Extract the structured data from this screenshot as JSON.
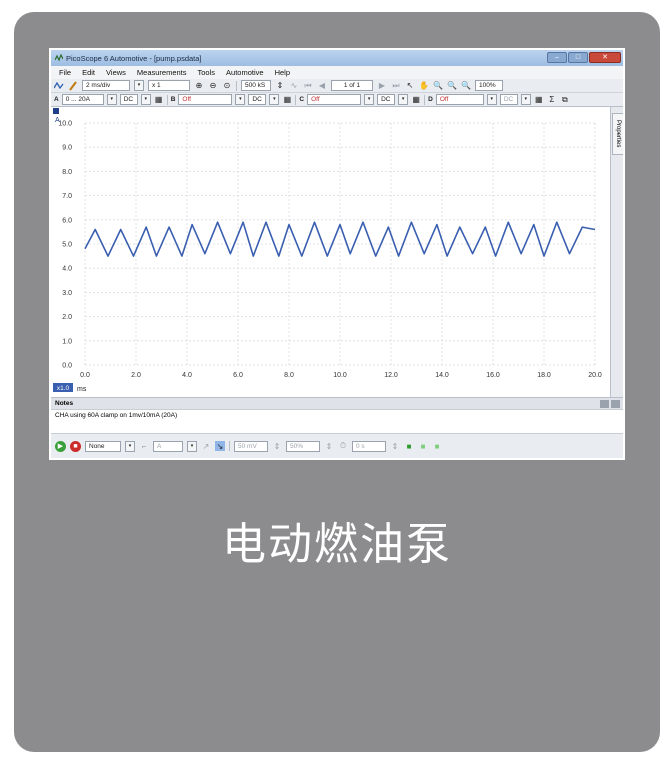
{
  "window": {
    "title": "PicoScope 6 Automotive - [pump.psdata]",
    "minimize": "–",
    "maximize": "□",
    "close": "✕"
  },
  "menu": [
    "File",
    "Edit",
    "Views",
    "Measurements",
    "Tools",
    "Automotive",
    "Help"
  ],
  "toolbar": {
    "timebase": "2 ms/div",
    "zoom_factor": "x 1",
    "samples": "500 kS",
    "capture_count": "1 of 1",
    "zoom_level": "100%"
  },
  "channels": {
    "a": {
      "label": "A",
      "range": "0 ... 20A",
      "coupling": "DC"
    },
    "b": {
      "label": "B",
      "range": "Off",
      "coupling": "DC"
    },
    "c": {
      "label": "C",
      "range": "Off",
      "coupling": "DC"
    },
    "d": {
      "label": "D",
      "range": "Off",
      "coupling": "DC"
    }
  },
  "side_tab": "Properties",
  "notes": {
    "header": "Notes",
    "text": "CHA using 60A clamp on 1mv/10mA (20A)"
  },
  "statusbar": {
    "trigger_mode": "None",
    "channel": "A",
    "threshold": "50 mV",
    "pretrigger": "50%",
    "delay": "0 s"
  },
  "caption": "电动燃油泵",
  "chart_data": {
    "type": "line",
    "xlabel": "ms",
    "ylabel": "A",
    "xlim": [
      0,
      20
    ],
    "ylim": [
      0,
      10
    ],
    "x_ticks": [
      "0.0",
      "2.0",
      "4.0",
      "6.0",
      "8.0",
      "10.0",
      "12.0",
      "14.0",
      "16.0",
      "18.0",
      "20.0"
    ],
    "y_ticks": [
      "0.0",
      "1.0",
      "2.0",
      "3.0",
      "4.0",
      "5.0",
      "6.0",
      "7.0",
      "8.0",
      "9.0",
      "10.0"
    ],
    "x_scale_badge": "x1.0",
    "grid": true,
    "series": [
      {
        "color": "#3a5fb0",
        "x": [
          0.0,
          0.4,
          0.9,
          1.4,
          1.9,
          2.4,
          2.8,
          3.3,
          3.8,
          4.2,
          4.7,
          5.2,
          5.7,
          6.2,
          6.6,
          7.1,
          7.6,
          8.0,
          8.5,
          9.0,
          9.5,
          10.0,
          10.4,
          10.9,
          11.4,
          11.9,
          12.3,
          12.8,
          13.3,
          13.8,
          14.2,
          14.7,
          15.2,
          15.7,
          16.1,
          16.6,
          17.1,
          17.6,
          18.0,
          18.5,
          19.0,
          19.5,
          20.0
        ],
        "y": [
          4.8,
          5.6,
          4.5,
          5.6,
          4.5,
          5.7,
          4.5,
          5.7,
          4.5,
          5.8,
          4.6,
          5.9,
          4.6,
          5.9,
          4.5,
          5.9,
          4.5,
          5.8,
          4.5,
          5.9,
          4.5,
          5.8,
          4.6,
          5.9,
          4.5,
          5.7,
          4.5,
          5.9,
          4.6,
          5.8,
          4.5,
          5.7,
          4.6,
          5.7,
          4.5,
          5.9,
          4.6,
          5.8,
          4.5,
          5.9,
          4.6,
          5.7,
          5.6
        ]
      }
    ]
  }
}
